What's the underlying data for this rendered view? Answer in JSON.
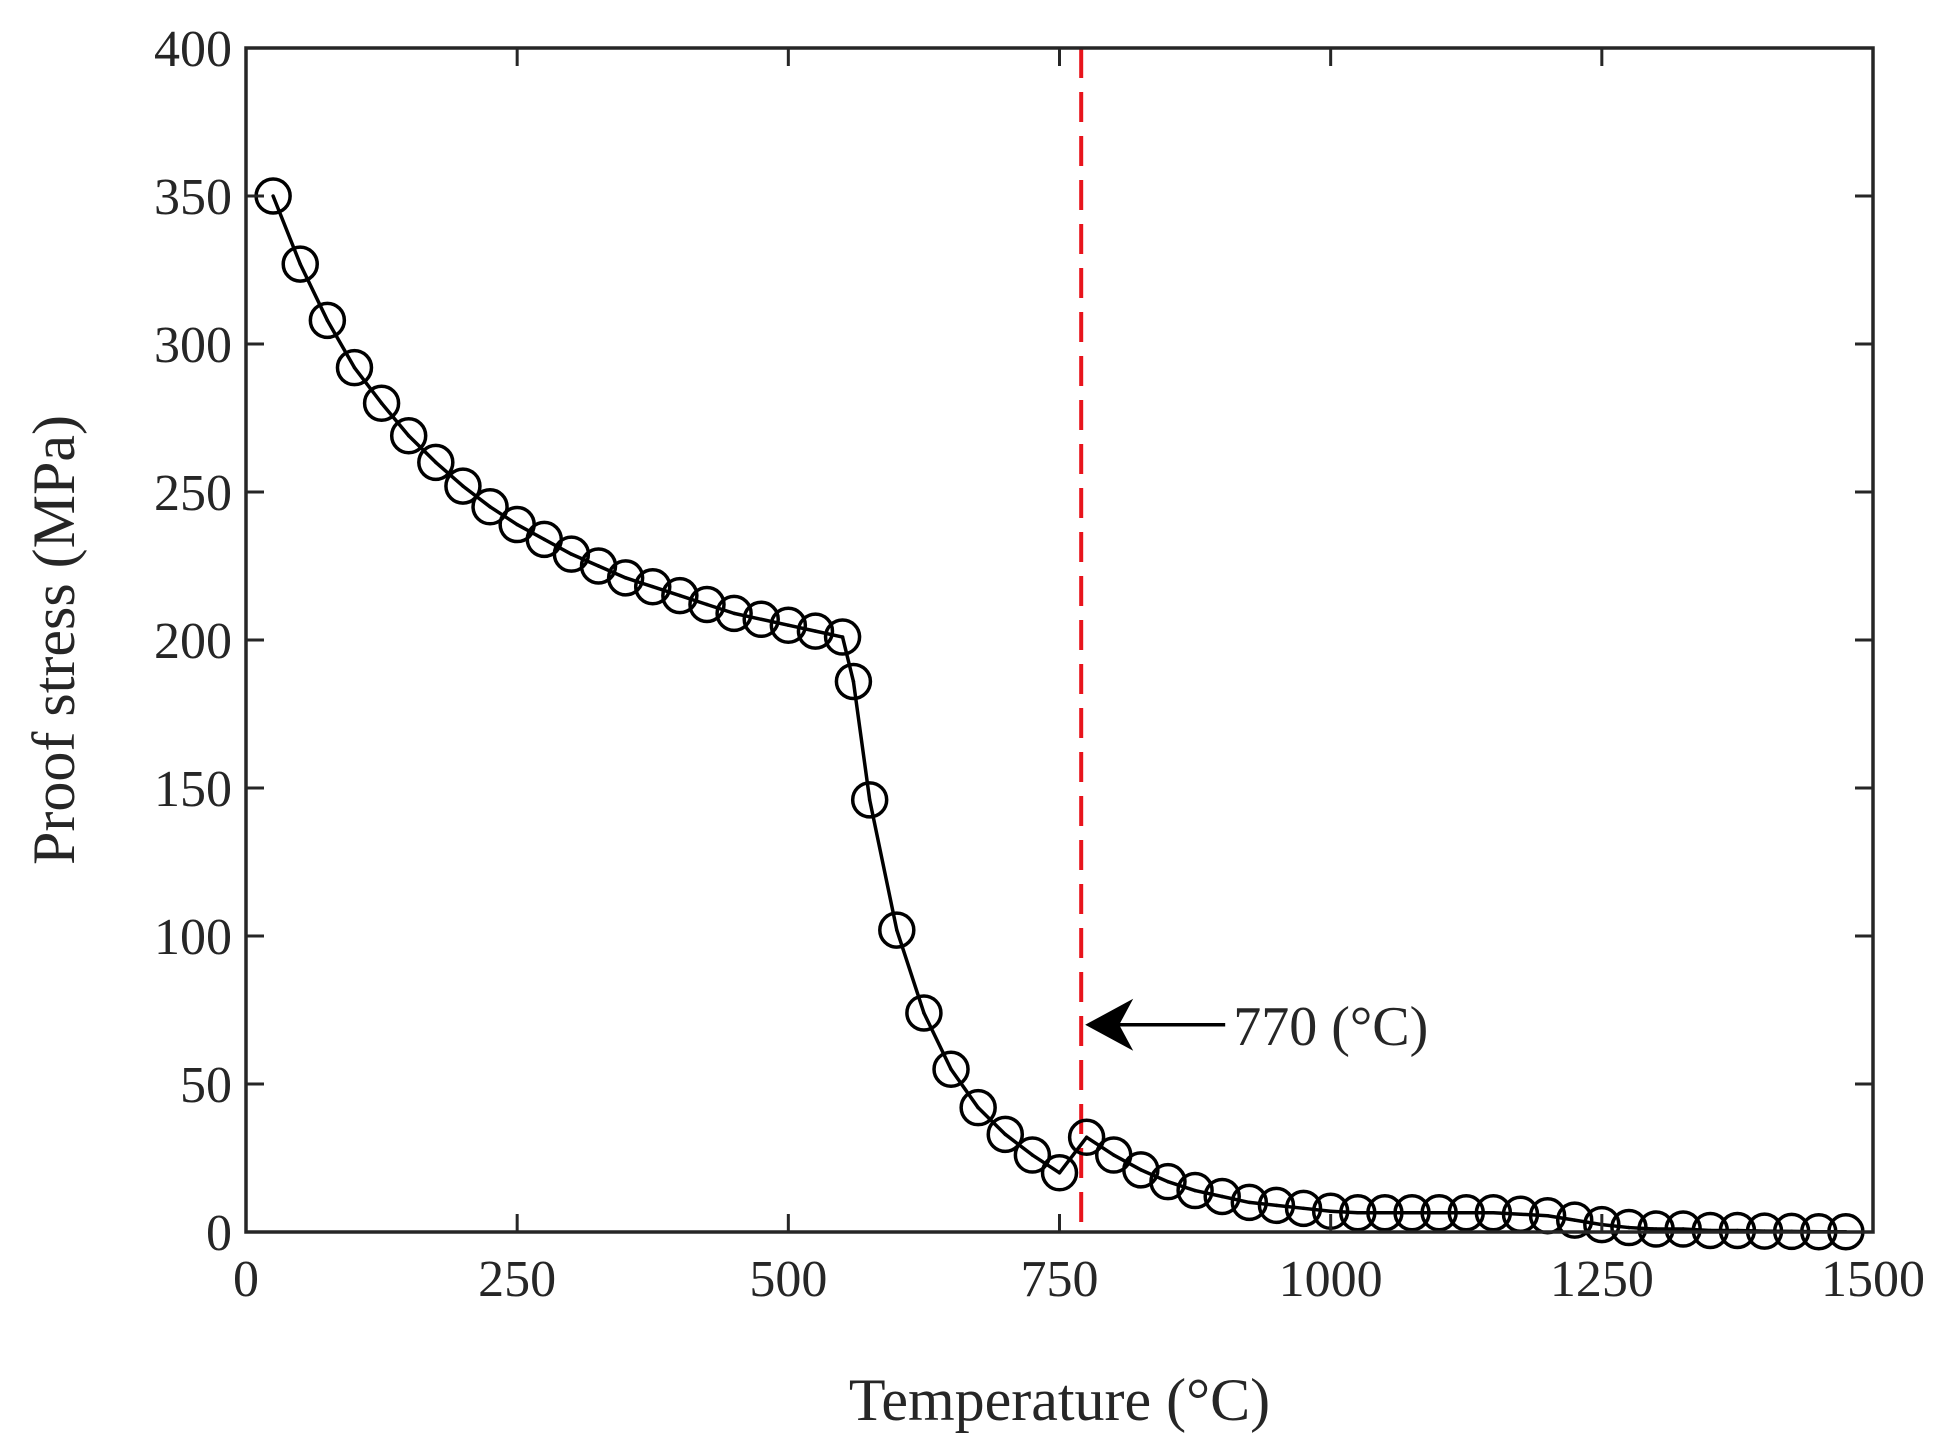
{
  "chart_data": {
    "type": "line",
    "title": "",
    "xlabel": "Temperature (°C)",
    "ylabel": "Proof stress (MPa)",
    "xlim": [
      0,
      1500
    ],
    "ylim": [
      0,
      400
    ],
    "xticks": [
      0,
      250,
      500,
      750,
      1000,
      1250,
      1500
    ],
    "yticks": [
      0,
      50,
      100,
      150,
      200,
      250,
      300,
      350,
      400
    ],
    "grid": false,
    "legend": "none",
    "series": [
      {
        "name": "Proof stress",
        "marker": "open-circle",
        "color": "#000000",
        "x": [
          25,
          50,
          75,
          100,
          125,
          150,
          175,
          200,
          225,
          250,
          275,
          300,
          325,
          350,
          375,
          400,
          425,
          450,
          475,
          500,
          525,
          550,
          560,
          575,
          600,
          625,
          650,
          675,
          700,
          725,
          750,
          775,
          800,
          825,
          850,
          875,
          900,
          925,
          950,
          975,
          1000,
          1025,
          1050,
          1075,
          1100,
          1125,
          1150,
          1175,
          1200,
          1225,
          1250,
          1275,
          1300,
          1325,
          1350,
          1375,
          1400,
          1425,
          1450,
          1475
        ],
        "values": [
          350,
          327,
          308,
          292,
          280,
          269,
          260,
          252,
          245,
          239,
          234,
          229,
          225,
          221,
          218,
          215,
          212,
          209,
          207,
          205,
          203,
          201,
          186,
          146,
          102,
          74,
          55,
          42,
          33,
          26,
          20,
          32,
          26,
          21,
          17,
          14,
          12,
          10,
          9,
          8,
          7,
          6.5,
          6.5,
          6.5,
          6.5,
          6.5,
          6.5,
          6,
          5.5,
          4,
          2.5,
          1.5,
          1,
          1,
          0.5,
          0.5,
          0.3,
          0.2,
          0.1,
          0.1
        ]
      }
    ],
    "reference_line": {
      "x": 770,
      "color": "#e8141c",
      "style": "dashed"
    },
    "annotations": [
      {
        "text": "770 (°C)",
        "arrow_to_x": 770,
        "arrow_to_y": 70
      }
    ]
  }
}
